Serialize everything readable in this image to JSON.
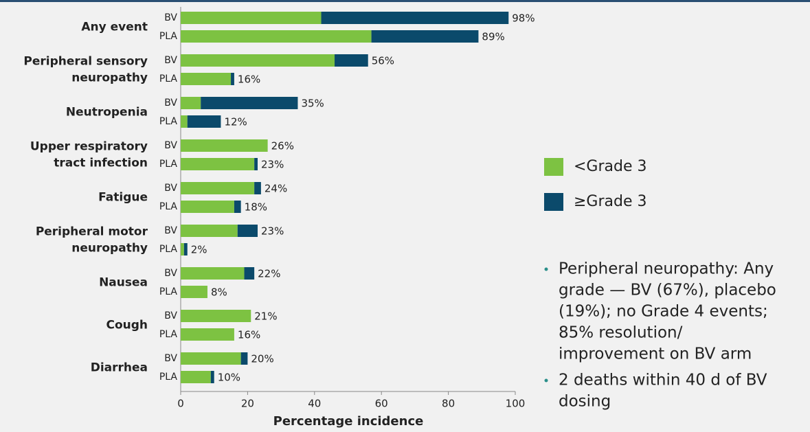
{
  "chart_data": {
    "type": "stacked-bar-horizontal",
    "groups": [
      [
        "Any event"
      ],
      [
        "Peripheral sensory",
        "neuropathy"
      ],
      [
        "Neutropenia"
      ],
      [
        "Upper respiratory",
        "tract infection"
      ],
      [
        "Fatigue"
      ],
      [
        "Peripheral motor",
        "neuropathy"
      ],
      [
        "Nausea"
      ],
      [
        "Cough"
      ],
      [
        "Diarrhea"
      ]
    ],
    "categories": [
      "BV",
      "PLA",
      "BV",
      "PLA",
      "BV",
      "PLA",
      "BV",
      "PLA",
      "BV",
      "PLA",
      "BV",
      "PLA",
      "BV",
      "PLA",
      "BV",
      "PLA",
      "BV",
      "PLA"
    ],
    "series": [
      {
        "name": "<Grade 3",
        "color": "#7dc242",
        "values": [
          42,
          57,
          46,
          15,
          6,
          2,
          26,
          22,
          22,
          16,
          17,
          1,
          19,
          8,
          21,
          16,
          18,
          9
        ]
      },
      {
        "name": "≥Grade 3",
        "color": "#0b4a6b",
        "values": [
          56,
          32,
          10,
          1,
          29,
          10,
          0,
          1,
          2,
          2,
          6,
          1,
          3,
          0,
          0,
          0,
          2,
          1
        ]
      }
    ],
    "totals": {
      "values": [
        98,
        89,
        56,
        16,
        35,
        12,
        26,
        23,
        24,
        18,
        23,
        2,
        22,
        8,
        21,
        16,
        20,
        10
      ],
      "value_labels": [
        "98%",
        "89%",
        "56%",
        "16%",
        "35%",
        "12%",
        "26%",
        "23%",
        "24%",
        "18%",
        "23%",
        "2%",
        "22%",
        "8%",
        "21%",
        "16%",
        "20%",
        "10%"
      ]
    },
    "xlabel": "Percentage incidence",
    "xlim": [
      0,
      100
    ],
    "xticks": [
      0,
      20,
      40,
      60,
      80,
      100
    ],
    "notes": [
      [
        "Peripheral neuropathy: Any",
        "grade — BV (67%), placebo",
        "(19%); no Grade 4 events;",
        "85% resolution/",
        "improvement on BV arm"
      ],
      [
        "2 deaths within 40 d of BV",
        "dosing"
      ]
    ]
  }
}
